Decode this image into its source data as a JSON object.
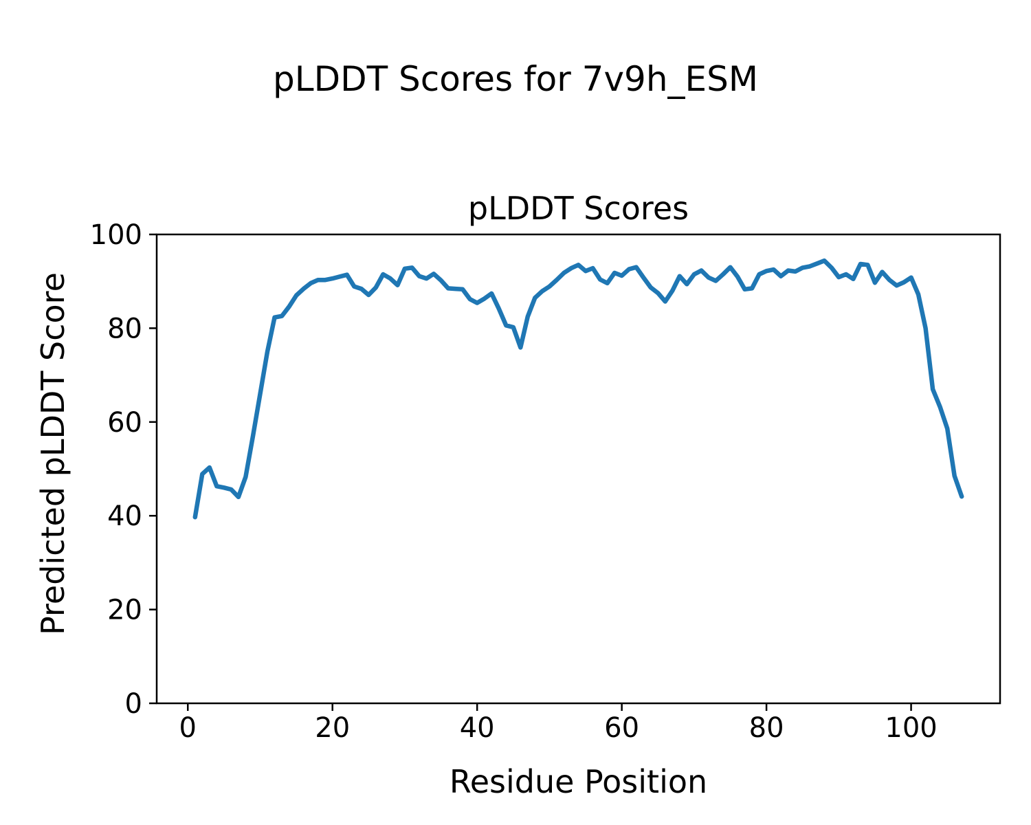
{
  "chart_data": {
    "type": "line",
    "suptitle": "pLDDT Scores for 7v9h_ESM",
    "title": "pLDDT Scores",
    "xlabel": "Residue Position",
    "ylabel": "Predicted pLDDT Score",
    "xlim": [
      -4.3,
      112.3
    ],
    "ylim": [
      0,
      100
    ],
    "xticks": [
      0,
      20,
      40,
      60,
      80,
      100
    ],
    "yticks": [
      0,
      20,
      40,
      60,
      80,
      100
    ],
    "grid": false,
    "legend": false,
    "line_color": "#1f77b4",
    "background_color": "#ffffff",
    "series": [
      {
        "name": "pLDDT",
        "x": [
          1,
          2,
          3,
          4,
          5,
          6,
          7,
          8,
          9,
          10,
          11,
          12,
          13,
          14,
          15,
          16,
          17,
          18,
          19,
          20,
          21,
          22,
          23,
          24,
          25,
          26,
          27,
          28,
          29,
          30,
          31,
          32,
          33,
          34,
          35,
          36,
          37,
          38,
          39,
          40,
          41,
          42,
          43,
          44,
          45,
          46,
          47,
          48,
          49,
          50,
          51,
          52,
          53,
          54,
          55,
          56,
          57,
          58,
          59,
          60,
          61,
          62,
          63,
          64,
          65,
          66,
          67,
          68,
          69,
          70,
          71,
          72,
          73,
          74,
          75,
          76,
          77,
          78,
          79,
          80,
          81,
          82,
          83,
          84,
          85,
          86,
          87,
          88,
          89,
          90,
          91,
          92,
          93,
          94,
          95,
          96,
          97,
          98,
          99,
          100,
          101,
          102,
          103,
          104,
          105,
          106,
          107
        ],
        "y": [
          39.7,
          48.9,
          50.3,
          46.3,
          46.0,
          45.6,
          44.0,
          48.3,
          57.0,
          66.0,
          75.0,
          82.3,
          82.6,
          84.6,
          87.0,
          88.4,
          89.6,
          90.3,
          90.3,
          90.6,
          91.0,
          91.4,
          88.9,
          88.4,
          87.1,
          88.7,
          91.5,
          90.6,
          89.2,
          92.7,
          92.9,
          91.1,
          90.6,
          91.6,
          90.2,
          88.5,
          88.4,
          88.3,
          86.2,
          85.4,
          86.3,
          87.4,
          84.2,
          80.6,
          80.2,
          75.9,
          82.5,
          86.5,
          87.9,
          88.9,
          90.3,
          91.8,
          92.8,
          93.5,
          92.2,
          92.8,
          90.4,
          89.6,
          91.8,
          91.2,
          92.6,
          93.0,
          90.8,
          88.7,
          87.5,
          85.7,
          88.0,
          91.1,
          89.4,
          91.5,
          92.3,
          90.8,
          90.1,
          91.5,
          93.0,
          91.0,
          88.3,
          88.5,
          91.5,
          92.2,
          92.5,
          91.1,
          92.3,
          92.1,
          92.9,
          93.2,
          93.8,
          94.4,
          92.9,
          90.9,
          91.5,
          90.5,
          93.7,
          93.5,
          89.7,
          92.0,
          90.3,
          89.1,
          89.8,
          90.8,
          87.2,
          80.0,
          67.0,
          63.2,
          58.6,
          48.5,
          44.1
        ]
      }
    ]
  }
}
